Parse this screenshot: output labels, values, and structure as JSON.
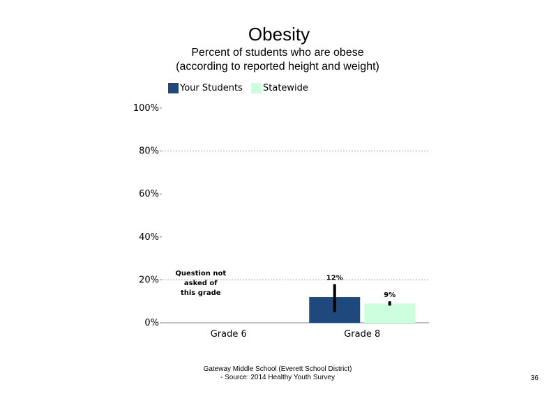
{
  "slide": {
    "footer_line1": "Gateway Middle School (Everett School District)",
    "footer_line2": "- Source: 2014 Healthy  Youth Survey",
    "page_number": "36"
  },
  "chart_data": {
    "type": "bar",
    "title": "Obesity",
    "subtitle": "Percent of students who are obese (according to reported height and weight)",
    "categories": [
      "Grade 6",
      "Grade 8"
    ],
    "series": [
      {
        "name": "Your Students",
        "color": "#1f497d",
        "values": [
          null,
          12
        ],
        "error_low": [
          null,
          5
        ],
        "error_high": [
          null,
          18
        ]
      },
      {
        "name": "Statewide",
        "color": "#ccffdd",
        "values": [
          null,
          9
        ],
        "error_low": [
          null,
          8
        ],
        "error_high": [
          null,
          10
        ]
      }
    ],
    "data_labels": [
      [
        null,
        "12%"
      ],
      [
        null,
        "9%"
      ]
    ],
    "ylim": [
      0,
      100
    ],
    "yticks": [
      0,
      20,
      40,
      60,
      80,
      100
    ],
    "ytick_labels": [
      "0%",
      "20%",
      "40%",
      "60%",
      "80%",
      "100%"
    ],
    "gridlines": [
      20,
      80
    ],
    "annotation": "Question not asked of this grade",
    "legend_position": "top",
    "errorbar_color": "#000000"
  }
}
